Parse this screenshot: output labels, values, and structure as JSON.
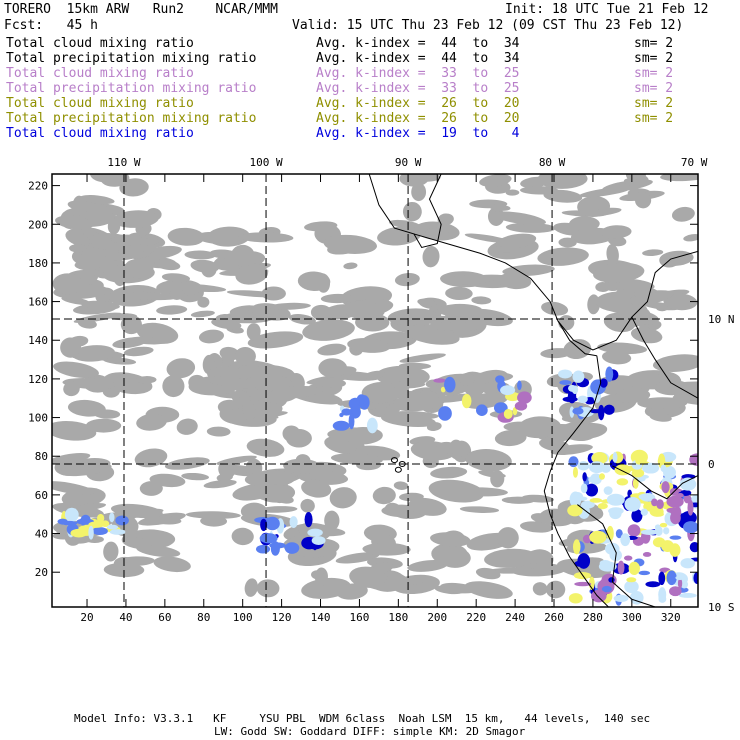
{
  "header": {
    "title": "TORERO  15km ARW   Run2    NCAR/MMM",
    "init": "Init: 18 UTC Tue 21 Feb 12",
    "fcst": "Fcst:   45 h",
    "valid": "Valid: 15 UTC Thu 23 Feb 12 (09 CST Thu 23 Feb 12)"
  },
  "legend": [
    {
      "field": "Total cloud mixing ratio",
      "kindex": "Avg. k-index =  44  to  34",
      "sm": "sm= 2",
      "color": "#000000"
    },
    {
      "field": "Total precipitation mixing ratio",
      "kindex": "Avg. k-index =  44  to  34",
      "sm": "sm= 2",
      "color": "#000000"
    },
    {
      "field": "Total cloud mixing ratio",
      "kindex": "Avg. k-index =  33  to  25",
      "sm": "sm= 2",
      "color": "#b87fc9"
    },
    {
      "field": "Total precipitation mixing ratio",
      "kindex": "Avg. k-index =  33  to  25",
      "sm": "sm= 2",
      "color": "#b87fc9"
    },
    {
      "field": "Total cloud mixing ratio",
      "kindex": "Avg. k-index =  26  to  20",
      "sm": "sm= 2",
      "color": "#8f8f00"
    },
    {
      "field": "Total precipitation mixing ratio",
      "kindex": "Avg. k-index =  26  to  20",
      "sm": "sm= 2",
      "color": "#8f8f00"
    },
    {
      "field": "Total cloud mixing ratio",
      "kindex": "Avg. k-index =  19  to   4",
      "sm": "",
      "color": "#0000dd"
    }
  ],
  "axes": {
    "x_ticks": [
      "20",
      "40",
      "60",
      "80",
      "100",
      "120",
      "140",
      "160",
      "180",
      "200",
      "220",
      "240",
      "260",
      "280",
      "300",
      "320"
    ],
    "x_tick_values": [
      20,
      40,
      60,
      80,
      100,
      120,
      140,
      160,
      180,
      200,
      220,
      240,
      260,
      280,
      300,
      320
    ],
    "x_range": [
      2,
      334
    ],
    "y_ticks": [
      "20",
      "40",
      "60",
      "80",
      "100",
      "120",
      "140",
      "160",
      "180",
      "200",
      "220"
    ],
    "y_tick_values": [
      20,
      40,
      60,
      80,
      100,
      120,
      140,
      160,
      180,
      200,
      220
    ],
    "y_range": [
      2,
      226
    ],
    "lon_labels": [
      {
        "text": "110 W",
        "x": 39
      },
      {
        "text": "100 W",
        "x": 112
      },
      {
        "text": "90 W",
        "x": 185
      },
      {
        "text": "80 W",
        "x": 259
      },
      {
        "text": "70 W",
        "x": 332
      }
    ],
    "lat_labels": [
      {
        "text": "10 N",
        "y": 151
      },
      {
        "text": "0",
        "y": 76
      },
      {
        "text": "10 S",
        "y": 2
      }
    ],
    "grid_x": [
      39,
      112,
      185,
      259
    ],
    "grid_y": [
      151,
      76
    ]
  },
  "colors": {
    "cloud": "#a9a9a9",
    "light_blue": "#c8e6fb",
    "mid_blue": "#5a7ff0",
    "dark_blue": "#0000c8",
    "yellow": "#f3f36b",
    "purple": "#b070c0"
  },
  "footer": {
    "line1": "Model Info: V3.3.1   KF     YSU PBL  WDM 6class  Noah LSM  15 km,   44 levels,  140 sec",
    "line2": "LW: Godd SW: Goddard DIFF: simple KM: 2D Smagor"
  }
}
